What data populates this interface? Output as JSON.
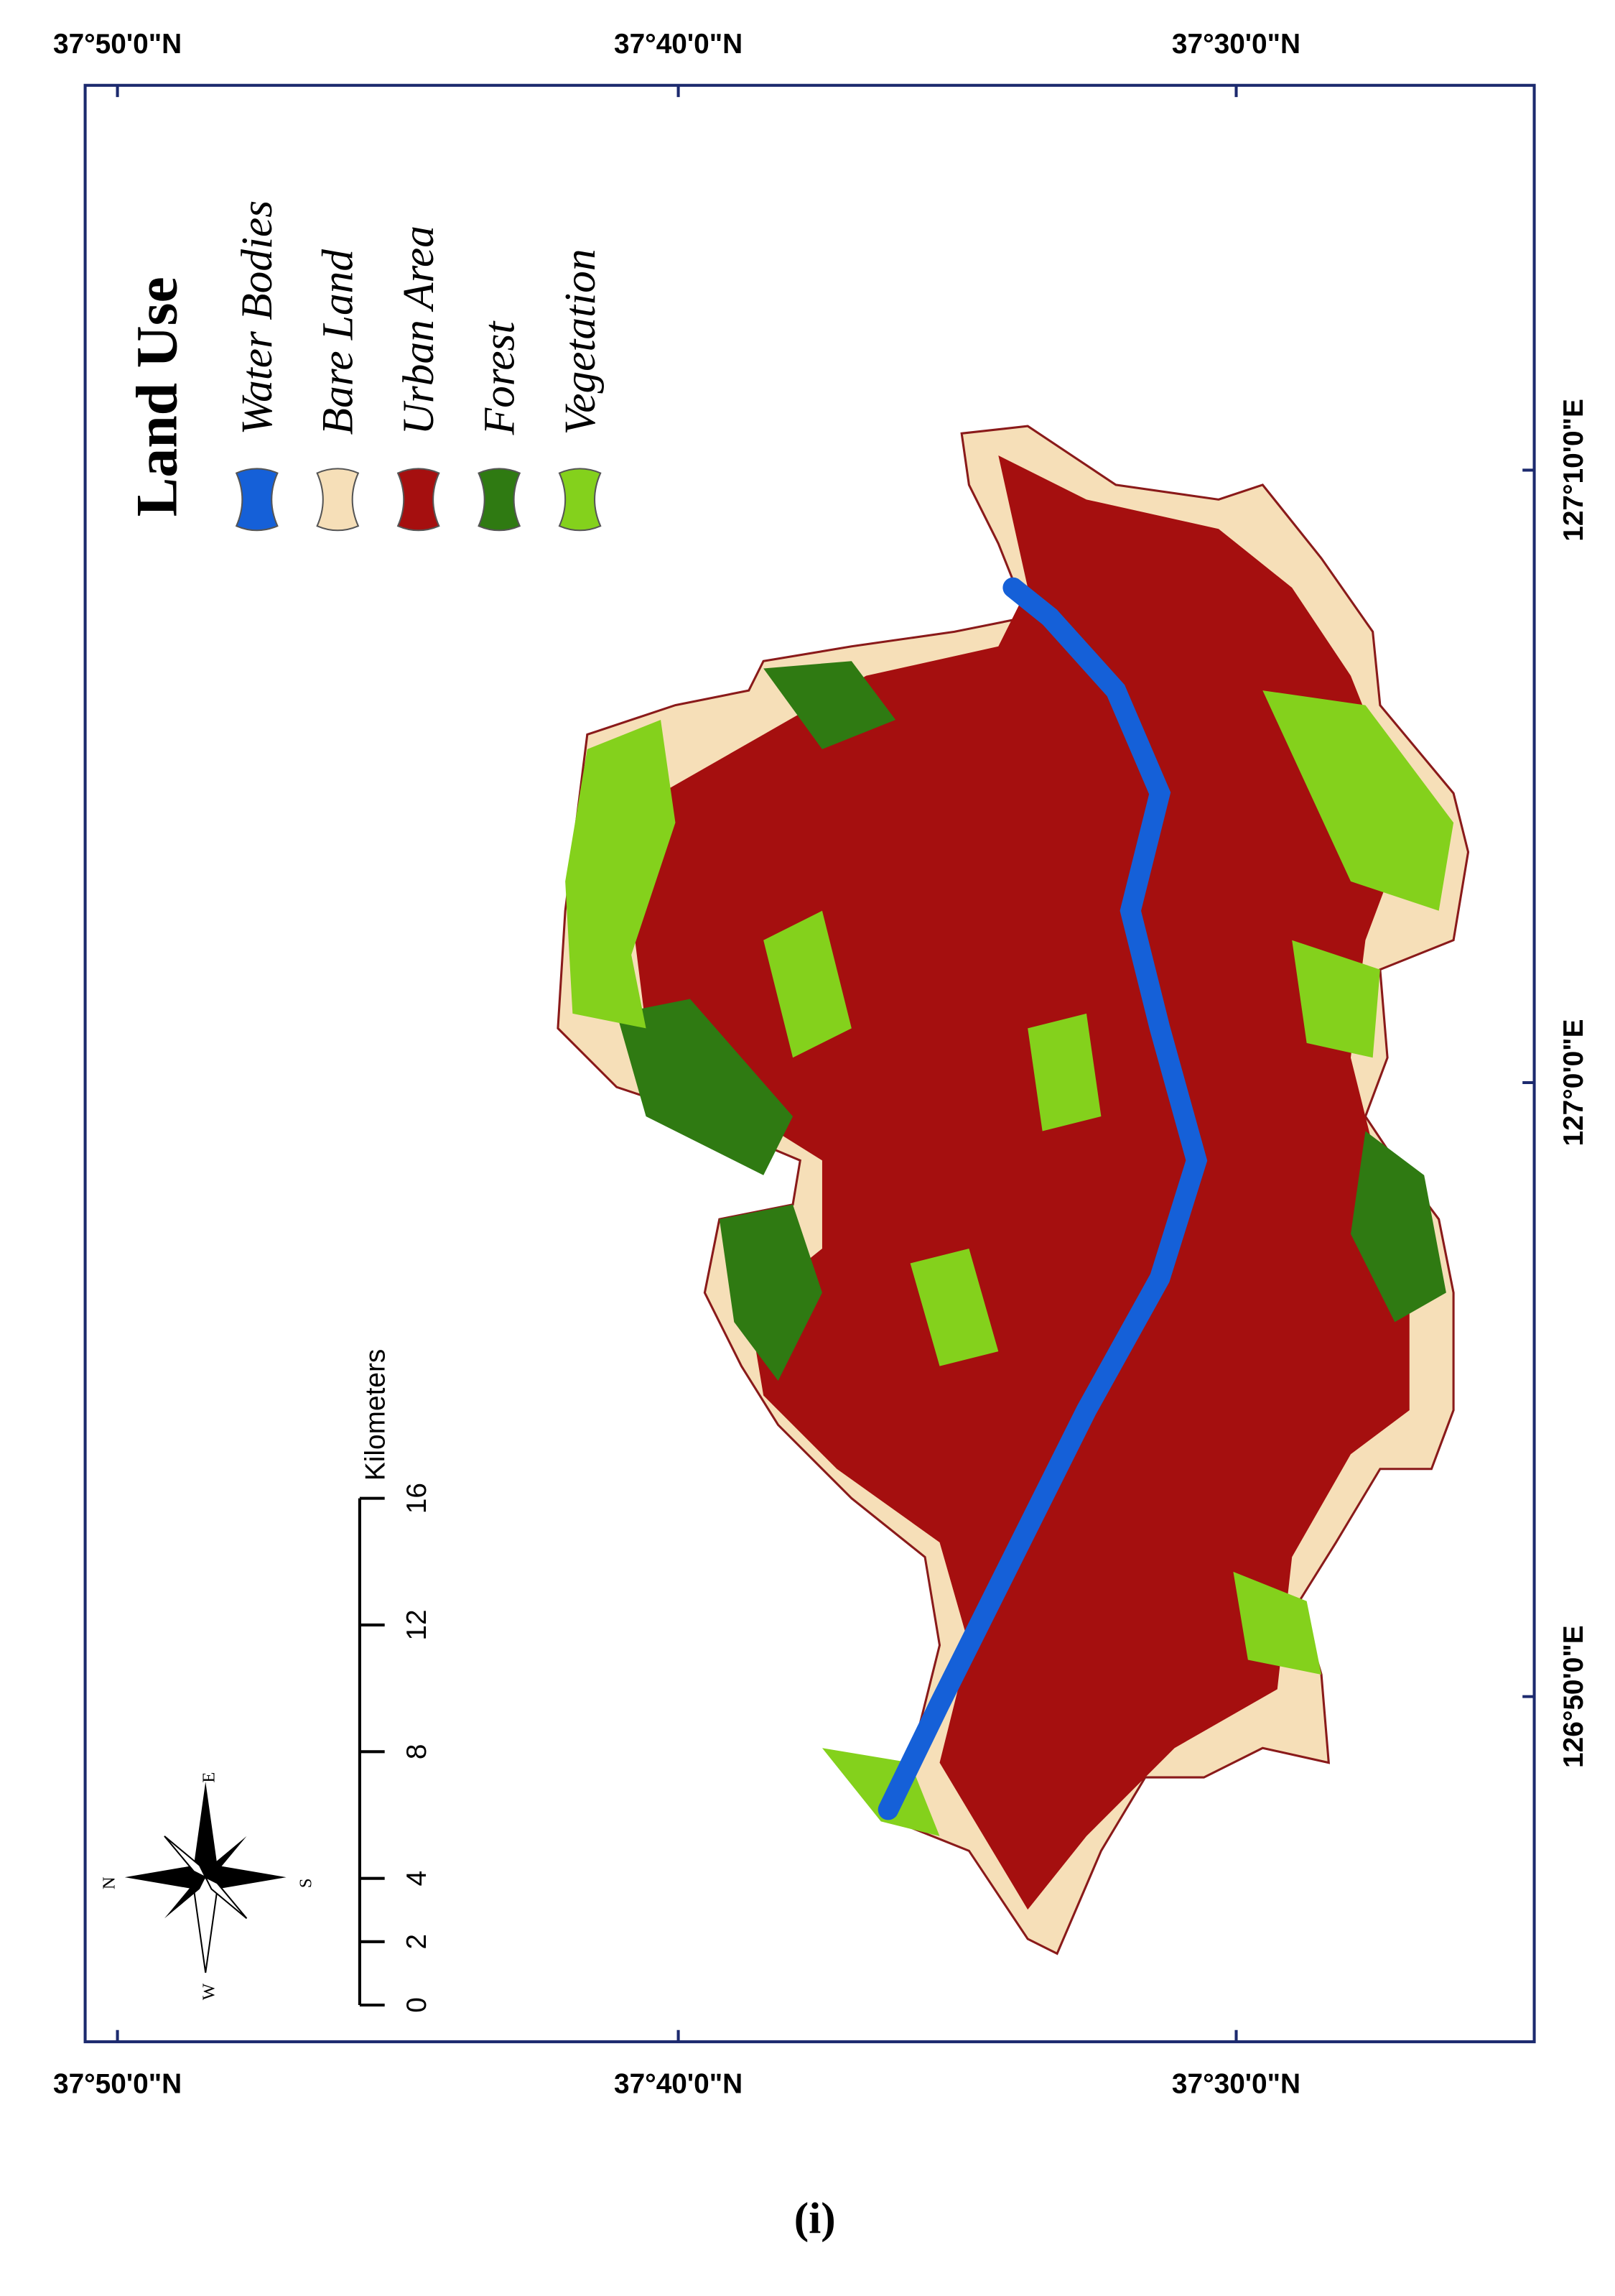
{
  "frame": {
    "top_labels": [
      "37°50'0\"N",
      "37°40'0\"N",
      "37°30'0\"N"
    ],
    "bottom_labels": [
      "37°50'0\"N",
      "37°40'0\"N",
      "37°30'0\"N"
    ],
    "right_labels": [
      "127°10'0\"E",
      "127°0'0\"E",
      "126°50'0\"E"
    ]
  },
  "legend": {
    "title": "Land Use",
    "items": [
      {
        "label": "Water Bodies",
        "color": "#1560d8"
      },
      {
        "label": "Bare Land",
        "color": "#f6dfb8"
      },
      {
        "label": "Urban Area",
        "color": "#a50f0f"
      },
      {
        "label": "Forest",
        "color": "#2f7a12"
      },
      {
        "label": "Vegetation",
        "color": "#84d11c"
      }
    ]
  },
  "scale_bar": {
    "unit": "Kilometers",
    "ticks": [
      0,
      2,
      4,
      8,
      12,
      16
    ]
  },
  "compass": {
    "n": "N",
    "s": "S",
    "e": "E",
    "w": "W"
  },
  "caption": "(i)"
}
